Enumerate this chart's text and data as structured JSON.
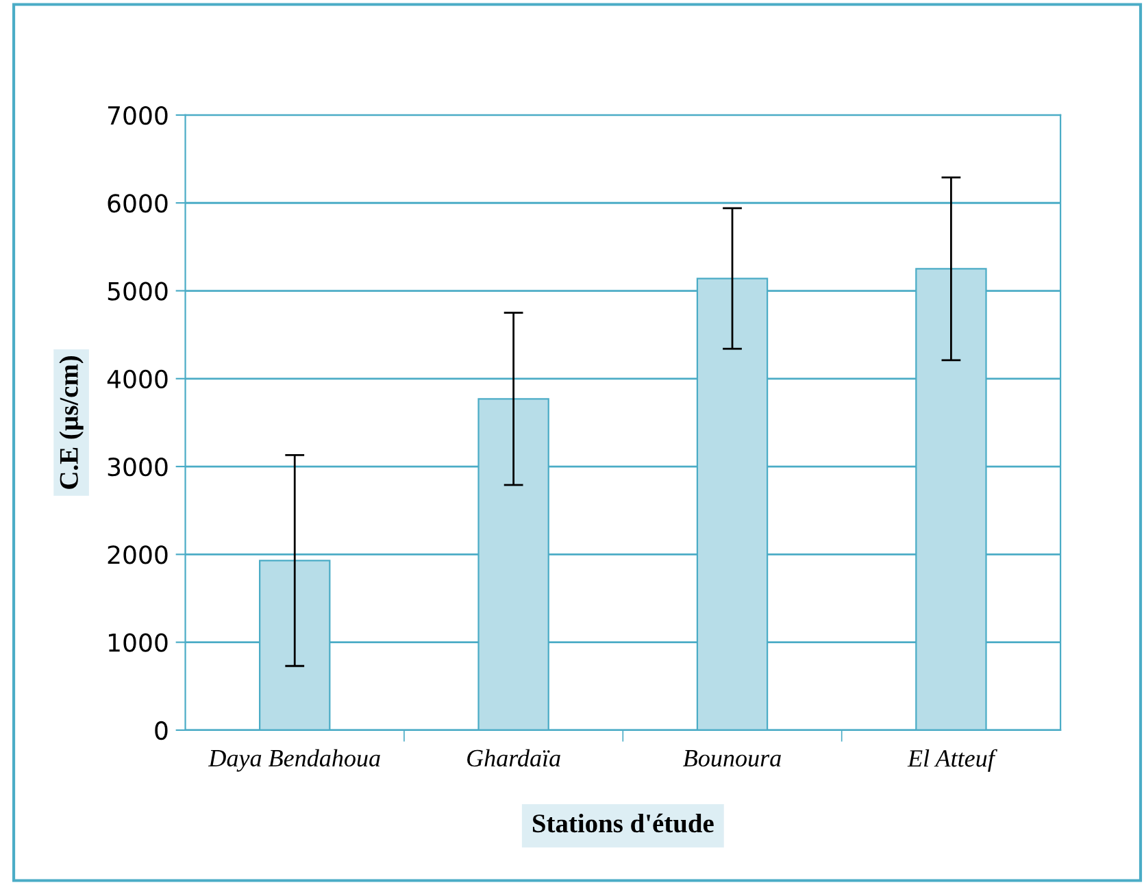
{
  "chart_data": {
    "type": "bar",
    "xlabel": "Stations d'étude",
    "ylabel": "C.E (µs/cm)",
    "categories": [
      "Daya Bendahoua",
      "Ghardaïa",
      "Bounoura",
      "El Atteuf"
    ],
    "values": [
      1930,
      3770,
      5140,
      5250
    ],
    "errors": [
      1200,
      980,
      800,
      1040
    ],
    "color": "#b7dde8",
    "ylim": [
      0,
      7000
    ],
    "yticks": [
      0,
      1000,
      2000,
      3000,
      4000,
      5000,
      6000,
      7000
    ],
    "grid": "y",
    "legend": false
  }
}
